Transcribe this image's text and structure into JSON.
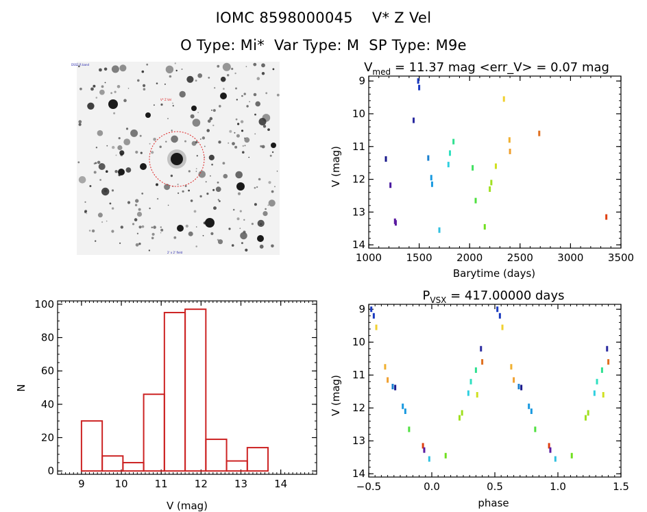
{
  "header": {
    "title": "IOMC 8598000045    V* Z Vel",
    "subtitle": "O Type: Mi*  Var Type: M  SP Type: M9e"
  },
  "colors": {
    "hist": "#cc2222",
    "circle": "#dd2222"
  },
  "finder": {
    "label_top_left": "DSS2 R band",
    "label_target": "V* Z Vel",
    "label_bottom": "2' x 2' field"
  },
  "chart_data": [
    {
      "id": "lightcurve",
      "type": "scatter",
      "title_main": "V",
      "title_sub": "med",
      "title_rest": " = 11.37 mag <err_V> = 0.07 mag",
      "xlabel": "Barytime (days)",
      "ylabel": "V (mag)",
      "xlim": [
        1000,
        3500
      ],
      "ylim": [
        14.1,
        8.85
      ],
      "y_inverted": true,
      "xticks": [
        1000,
        1500,
        2000,
        2500,
        3000,
        3500
      ],
      "yticks": [
        9,
        10,
        11,
        12,
        13,
        14
      ],
      "points": [
        {
          "x": 1170,
          "y": 11.38,
          "c": "#1a1a8c"
        },
        {
          "x": 1215,
          "y": 12.18,
          "c": "#4a1aa0"
        },
        {
          "x": 1260,
          "y": 13.28,
          "c": "#5a1aa0"
        },
        {
          "x": 1268,
          "y": 13.33,
          "c": "#5a1aa0"
        },
        {
          "x": 1445,
          "y": 10.2,
          "c": "#2a2aa0"
        },
        {
          "x": 1490,
          "y": 9.0,
          "c": "#1a3ac0"
        },
        {
          "x": 1500,
          "y": 9.2,
          "c": "#1a3ac0"
        },
        {
          "x": 1590,
          "y": 11.35,
          "c": "#1a80d0"
        },
        {
          "x": 1620,
          "y": 11.95,
          "c": "#1a9ae0"
        },
        {
          "x": 1628,
          "y": 12.15,
          "c": "#1a9ae0"
        },
        {
          "x": 1700,
          "y": 13.55,
          "c": "#30c0e0"
        },
        {
          "x": 1790,
          "y": 11.55,
          "c": "#30d0e0"
        },
        {
          "x": 1805,
          "y": 11.2,
          "c": "#30e0c0"
        },
        {
          "x": 1840,
          "y": 10.85,
          "c": "#30e090"
        },
        {
          "x": 2030,
          "y": 11.65,
          "c": "#40e060"
        },
        {
          "x": 2060,
          "y": 12.65,
          "c": "#50e040"
        },
        {
          "x": 2150,
          "y": 13.45,
          "c": "#70e020"
        },
        {
          "x": 2200,
          "y": 12.3,
          "c": "#a0e020"
        },
        {
          "x": 2215,
          "y": 12.1,
          "c": "#a0e020"
        },
        {
          "x": 2260,
          "y": 11.6,
          "c": "#d0e020"
        },
        {
          "x": 2340,
          "y": 9.55,
          "c": "#f0d030"
        },
        {
          "x": 2395,
          "y": 10.8,
          "c": "#f0b030"
        },
        {
          "x": 2400,
          "y": 11.15,
          "c": "#f0a030"
        },
        {
          "x": 2690,
          "y": 10.6,
          "c": "#e07020"
        },
        {
          "x": 3355,
          "y": 13.15,
          "c": "#e04010"
        }
      ]
    },
    {
      "id": "histogram",
      "type": "bar",
      "xlabel": "V (mag)",
      "ylabel": "N",
      "xlim": [
        8.4,
        14.9
      ],
      "ylim": [
        -2,
        102
      ],
      "xticks": [
        9,
        10,
        11,
        12,
        13,
        14
      ],
      "yticks": [
        0,
        20,
        40,
        60,
        80,
        100
      ],
      "bin_edges": [
        9.0,
        9.52,
        10.04,
        10.56,
        11.08,
        11.6,
        12.12,
        12.64,
        13.16,
        13.68
      ],
      "bin_width": 0.52,
      "values": [
        30,
        9,
        5,
        46,
        95,
        97,
        19,
        6,
        14
      ]
    },
    {
      "id": "phased",
      "type": "scatter",
      "title_main": "P",
      "title_sub": "VSX",
      "title_rest": " = 417.00000 days",
      "xlabel": "phase",
      "ylabel": "V (mag)",
      "xlim": [
        -0.5,
        1.5
      ],
      "ylim": [
        14.1,
        8.85
      ],
      "y_inverted": true,
      "xticks": [
        -0.5,
        0.0,
        0.5,
        1.0,
        1.5
      ],
      "xticklabels": [
        "−0.5",
        "0.0",
        "0.5",
        "1.0",
        "1.5"
      ],
      "yticks": [
        9,
        10,
        11,
        12,
        13,
        14
      ],
      "points": [
        {
          "x": -0.48,
          "y": 9.0,
          "c": "#1a3ac0"
        },
        {
          "x": -0.46,
          "y": 9.2,
          "c": "#1a3ac0"
        },
        {
          "x": -0.44,
          "y": 9.55,
          "c": "#f0d030"
        },
        {
          "x": -0.37,
          "y": 10.75,
          "c": "#f0b030"
        },
        {
          "x": -0.35,
          "y": 11.15,
          "c": "#f0a030"
        },
        {
          "x": -0.31,
          "y": 11.35,
          "c": "#1a80d0"
        },
        {
          "x": -0.29,
          "y": 11.38,
          "c": "#1a1a8c"
        },
        {
          "x": -0.23,
          "y": 11.95,
          "c": "#1a9ae0"
        },
        {
          "x": -0.21,
          "y": 12.1,
          "c": "#1a9ae0"
        },
        {
          "x": -0.18,
          "y": 12.65,
          "c": "#50e040"
        },
        {
          "x": -0.07,
          "y": 13.15,
          "c": "#e04010"
        },
        {
          "x": -0.06,
          "y": 13.28,
          "c": "#5a1aa0"
        },
        {
          "x": -0.02,
          "y": 13.55,
          "c": "#30c0e0"
        },
        {
          "x": 0.11,
          "y": 13.45,
          "c": "#70e020"
        },
        {
          "x": 0.22,
          "y": 12.3,
          "c": "#a0e020"
        },
        {
          "x": 0.24,
          "y": 12.15,
          "c": "#a0e020"
        },
        {
          "x": 0.29,
          "y": 11.55,
          "c": "#30d0e0"
        },
        {
          "x": 0.31,
          "y": 11.2,
          "c": "#30e0c0"
        },
        {
          "x": 0.35,
          "y": 10.85,
          "c": "#30e090"
        },
        {
          "x": 0.36,
          "y": 11.6,
          "c": "#d0e020"
        },
        {
          "x": 0.39,
          "y": 10.2,
          "c": "#2a2aa0"
        },
        {
          "x": 0.4,
          "y": 10.6,
          "c": "#e07020"
        },
        {
          "x": 0.52,
          "y": 9.0,
          "c": "#1a3ac0"
        },
        {
          "x": 0.54,
          "y": 9.2,
          "c": "#1a3ac0"
        },
        {
          "x": 0.56,
          "y": 9.55,
          "c": "#f0d030"
        },
        {
          "x": 0.63,
          "y": 10.75,
          "c": "#f0b030"
        },
        {
          "x": 0.65,
          "y": 11.15,
          "c": "#f0a030"
        },
        {
          "x": 0.69,
          "y": 11.35,
          "c": "#1a80d0"
        },
        {
          "x": 0.71,
          "y": 11.38,
          "c": "#1a1a8c"
        },
        {
          "x": 0.77,
          "y": 11.95,
          "c": "#1a9ae0"
        },
        {
          "x": 0.79,
          "y": 12.1,
          "c": "#1a9ae0"
        },
        {
          "x": 0.82,
          "y": 12.65,
          "c": "#50e040"
        },
        {
          "x": 0.93,
          "y": 13.15,
          "c": "#e04010"
        },
        {
          "x": 0.94,
          "y": 13.28,
          "c": "#5a1aa0"
        },
        {
          "x": 0.98,
          "y": 13.55,
          "c": "#30c0e0"
        },
        {
          "x": 1.11,
          "y": 13.45,
          "c": "#70e020"
        },
        {
          "x": 1.22,
          "y": 12.3,
          "c": "#a0e020"
        },
        {
          "x": 1.24,
          "y": 12.15,
          "c": "#a0e020"
        },
        {
          "x": 1.29,
          "y": 11.55,
          "c": "#30d0e0"
        },
        {
          "x": 1.31,
          "y": 11.2,
          "c": "#30e0c0"
        },
        {
          "x": 1.35,
          "y": 10.85,
          "c": "#30e090"
        },
        {
          "x": 1.36,
          "y": 11.6,
          "c": "#d0e020"
        },
        {
          "x": 1.39,
          "y": 10.2,
          "c": "#2a2aa0"
        },
        {
          "x": 1.4,
          "y": 10.6,
          "c": "#e07020"
        }
      ]
    }
  ]
}
